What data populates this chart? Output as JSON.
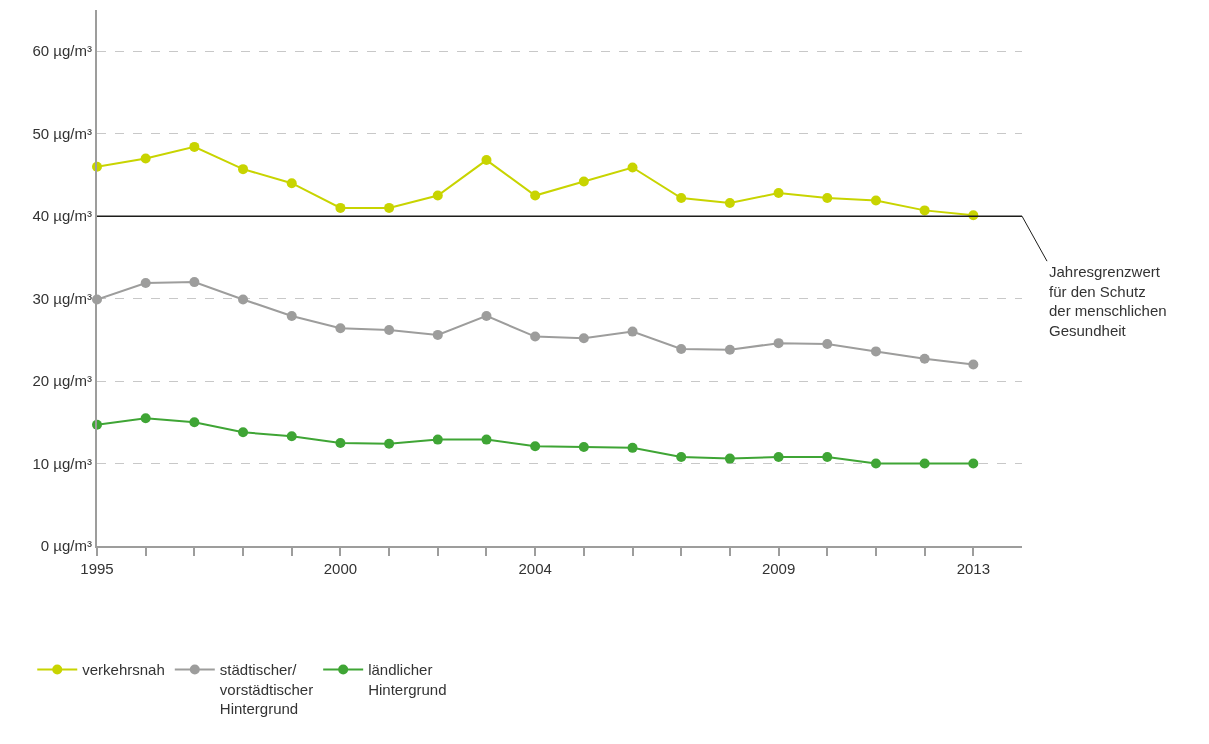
{
  "chart_data": {
    "type": "line",
    "x": [
      1995,
      1996,
      1997,
      1998,
      1999,
      2000,
      2001,
      2002,
      2003,
      2004,
      2005,
      2006,
      2007,
      2008,
      2009,
      2010,
      2011,
      2012,
      2013
    ],
    "series": [
      {
        "name": "verkehrsnah",
        "color": "#c8d400",
        "values": [
          46.0,
          47.0,
          48.4,
          45.7,
          44.0,
          41.0,
          41.0,
          42.5,
          46.8,
          42.5,
          44.2,
          45.9,
          42.2,
          41.6,
          42.8,
          42.2,
          41.9,
          40.7,
          40.1
        ]
      },
      {
        "name": "städtischer/\nvorstädtischer\nHintergrund",
        "color": "#9d9d9c",
        "values": [
          29.9,
          31.9,
          32.0,
          29.9,
          27.9,
          26.4,
          26.2,
          25.6,
          27.9,
          25.4,
          25.2,
          26.0,
          23.9,
          23.8,
          24.6,
          24.5,
          23.6,
          22.7,
          22.0
        ]
      },
      {
        "name": "ländlicher\nHintergrund",
        "color": "#3fa535",
        "values": [
          14.7,
          15.5,
          15.0,
          13.8,
          13.3,
          12.5,
          12.4,
          12.9,
          12.9,
          12.1,
          12.0,
          11.9,
          10.8,
          10.6,
          10.8,
          10.8,
          10.0,
          10.0,
          10.0
        ]
      }
    ],
    "xlim": [
      1995,
      2014
    ],
    "xticks": [
      1995,
      {
        "value": 1996,
        "label": null
      },
      {
        "value": 1997,
        "label": null
      },
      {
        "value": 1998,
        "label": null
      },
      {
        "value": 1999,
        "label": null
      },
      2000,
      {
        "value": 2001,
        "label": null
      },
      {
        "value": 2002,
        "label": null
      },
      {
        "value": 2003,
        "label": null
      },
      2004,
      {
        "value": 2005,
        "label": null
      },
      {
        "value": 2006,
        "label": null
      },
      {
        "value": 2007,
        "label": null
      },
      {
        "value": 2008,
        "label": null
      },
      2009,
      {
        "value": 2010,
        "label": null
      },
      {
        "value": 2011,
        "label": null
      },
      {
        "value": 2012,
        "label": null
      },
      2013
    ],
    "ylim": [
      0,
      65
    ],
    "yticks": [
      {
        "value": 0,
        "label": "0 µg/m³"
      },
      {
        "value": 10,
        "label": "10 µg/m³"
      },
      {
        "value": 20,
        "label": "20 µg/m³"
      },
      {
        "value": 30,
        "label": "30 µg/m³"
      },
      {
        "value": 40,
        "label": "40 µg/m³"
      },
      {
        "value": 50,
        "label": "50 µg/m³"
      },
      {
        "value": 60,
        "label": "60 µg/m³"
      }
    ],
    "ref_lines": [
      {
        "axis": "y",
        "value": 40,
        "label": "Jahresgrenzwert\nfür den Schutz\nder menschlichen\nGesundheit",
        "color": "#1d1d1b",
        "line_style": "solid"
      }
    ],
    "grid": "y",
    "legend": "bottom",
    "marker": "circle",
    "line_style": "solid"
  }
}
